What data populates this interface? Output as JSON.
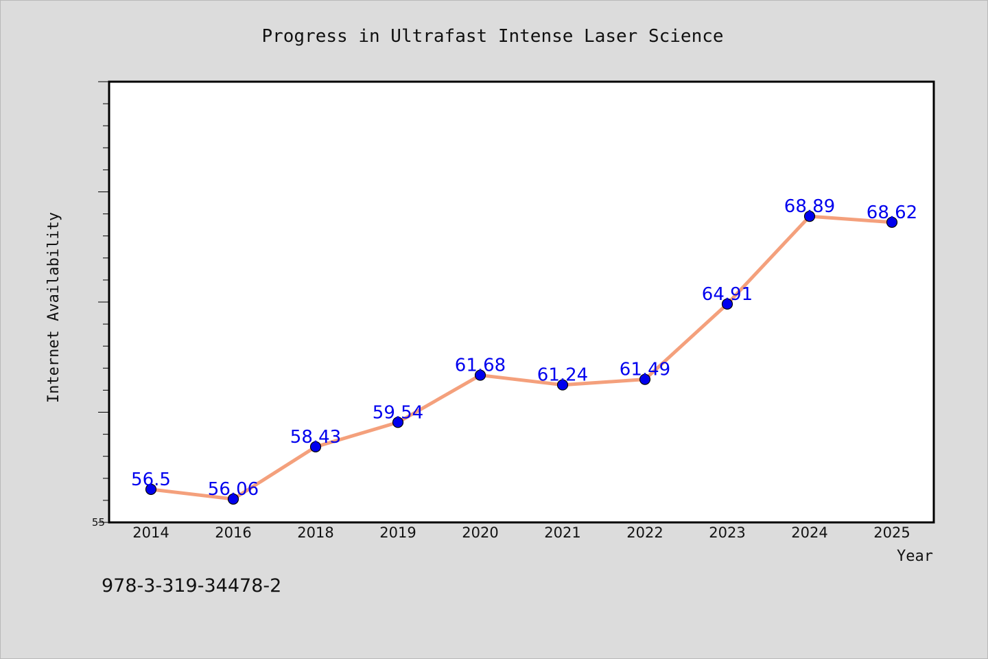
{
  "chart_data": {
    "type": "line",
    "title": "Progress in Ultrafast Intense Laser Science",
    "xlabel": "Year",
    "ylabel": "Internet Availability",
    "categories": [
      "2014",
      "2016",
      "2018",
      "2019",
      "2020",
      "2021",
      "2022",
      "2023",
      "2024",
      "2025"
    ],
    "values": [
      56.5,
      56.06,
      58.43,
      59.54,
      61.68,
      61.24,
      61.49,
      64.91,
      68.89,
      68.62
    ],
    "data_labels": [
      "56.5",
      "56.06",
      "58.43",
      "59.54",
      "61.68",
      "61.24",
      "61.49",
      "64.91",
      "68.89",
      "68.62"
    ],
    "y_tick_labels": [
      "55"
    ],
    "ylim": [
      55,
      75
    ],
    "grid": false,
    "line_color": "#f4a07c",
    "marker_color": "#0000ee",
    "label_color": "#0000ee"
  },
  "footer_text": "978-3-319-34478-2"
}
